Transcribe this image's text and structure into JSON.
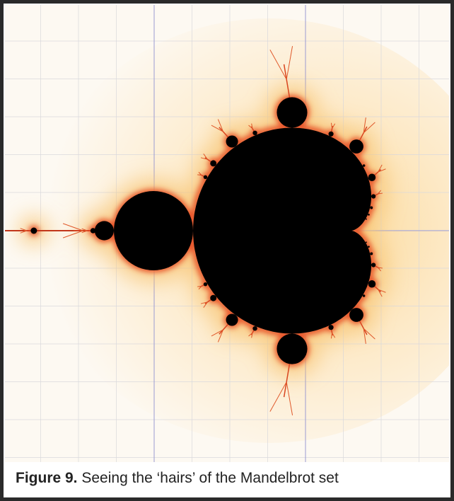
{
  "figure": {
    "label": "Figure 9.",
    "caption": "Seeing the ‘hairs’ of the Mandelbrot set"
  }
}
